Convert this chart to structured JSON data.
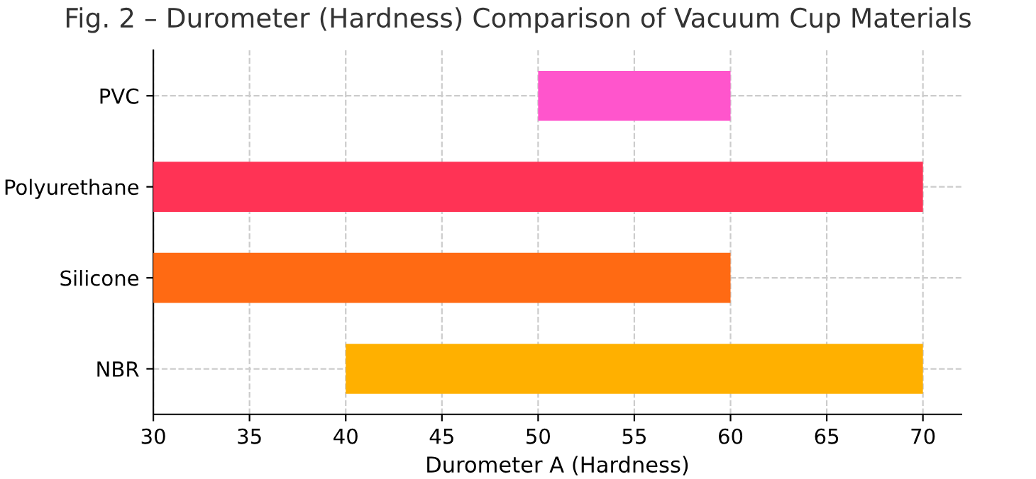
{
  "chart_data": {
    "type": "bar",
    "orientation": "horizontal",
    "title": "Fig. 2 – Durometer (Hardness) Comparison of Vacuum Cup Materials",
    "xlabel": "Durometer A (Hardness)",
    "categories": [
      "PVC",
      "Polyurethane",
      "Silicone",
      "NBR"
    ],
    "base": [
      50,
      30,
      30,
      40
    ],
    "values": [
      10,
      40,
      30,
      30
    ],
    "colors": [
      "#ff55cc",
      "#ff3355",
      "#ff6a13",
      "#ffb000"
    ],
    "xlim": [
      30,
      72
    ],
    "xticks": [
      30,
      35,
      40,
      45,
      50,
      55,
      60,
      65,
      70
    ],
    "grid": true
  }
}
